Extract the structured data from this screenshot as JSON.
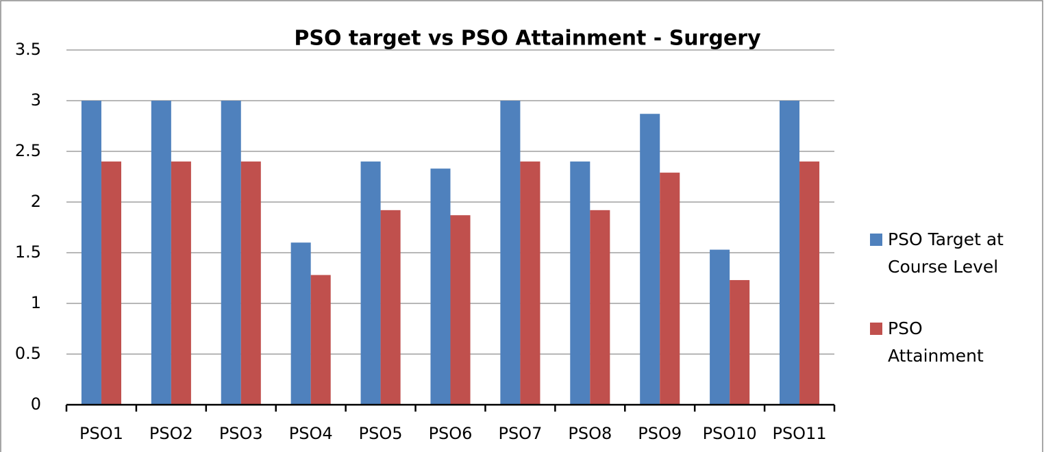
{
  "chart_data": {
    "type": "bar",
    "title": "PSO target  vs PSO Attainment  - Surgery",
    "categories": [
      "PSO1",
      "PSO2",
      "PSO3",
      "PSO4",
      "PSO5",
      "PSO6",
      "PSO7",
      "PSO8",
      "PSO9",
      "PSO10",
      "PSO11"
    ],
    "series": [
      {
        "name": "PSO Target at Course Level",
        "color": "#4f81bd",
        "values": [
          3,
          3,
          3,
          1.6,
          2.4,
          2.33,
          3,
          2.4,
          2.87,
          1.53,
          3
        ]
      },
      {
        "name": "PSO Attainment",
        "color": "#c0504d",
        "values": [
          2.4,
          2.4,
          2.4,
          1.28,
          1.92,
          1.87,
          2.4,
          1.92,
          2.29,
          1.23,
          2.4
        ]
      }
    ],
    "ylim": [
      0,
      3.5
    ],
    "yticks": [
      0,
      0.5,
      1,
      1.5,
      2,
      2.5,
      3,
      3.5
    ],
    "grid": true,
    "legend": "right"
  }
}
